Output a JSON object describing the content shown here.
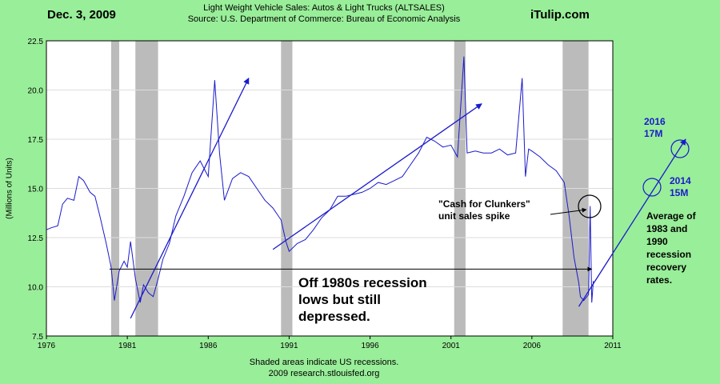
{
  "header": {
    "date": "Dec. 3, 2009",
    "title": "Light Weight Vehicle Sales: Autos & Light Trucks (ALTSALES)",
    "source": "Source: U.S. Department of Commerce: Bureau of Economic Analysis",
    "brand": "iTulip.com"
  },
  "footer": {
    "line1": "Shaded areas indicate US recessions.",
    "line2": "2009 research.stlouisfed.org"
  },
  "annotations": {
    "lows": "Off 1980s recession\nlows but still\ndepressed.",
    "clunkers": "\"Cash for Clunkers\"\nunit sales spike",
    "average": "Average of\n1983 and\n1990\nrecession\nrecovery\nrates.",
    "forecast_2016": "2016\n17M",
    "forecast_2014": "2014\n15M"
  },
  "colors": {
    "background": "#99ee99",
    "plot": "#ffffff",
    "line": "#1a1acc",
    "recession": "#bbbbbb",
    "grid": "#dddddd",
    "reference": "#000000"
  },
  "chart_data": {
    "type": "line",
    "ylabel": "(Millions of Units)",
    "xlim": [
      1976,
      2011
    ],
    "ylim": [
      7.5,
      22.5
    ],
    "x_ticks": [
      1976,
      1981,
      1986,
      1991,
      1996,
      2001,
      2006,
      2011
    ],
    "y_ticks": [
      "7.5",
      "10.0",
      "12.5",
      "15.0",
      "17.5",
      "20.0",
      "22.5"
    ],
    "grid": "horizontal",
    "recessions": [
      [
        1980.0,
        1980.5
      ],
      [
        1981.5,
        1982.9
      ],
      [
        1990.5,
        1991.2
      ],
      [
        2001.2,
        2001.9
      ],
      [
        2007.9,
        2009.5
      ]
    ],
    "series": [
      {
        "x": [
          1976.0,
          1976.3,
          1976.7,
          1977.0,
          1977.3,
          1977.7,
          1978.0,
          1978.3,
          1978.7,
          1979.0,
          1979.3,
          1979.7,
          1980.0,
          1980.2,
          1980.5,
          1980.8,
          1981.0,
          1981.2,
          1981.5,
          1981.8,
          1982.0,
          1982.3,
          1982.6,
          1982.9,
          1983.2,
          1983.6,
          1984.0,
          1984.5,
          1985.0,
          1985.5,
          1986.0,
          1986.4,
          1986.7,
          1987.0,
          1987.5,
          1988.0,
          1988.5,
          1989.0,
          1989.5,
          1990.0,
          1990.5,
          1990.8,
          1991.0,
          1991.5,
          1992.0,
          1992.5,
          1993.0,
          1993.5,
          1994.0,
          1994.5,
          1995.0,
          1995.5,
          1996.0,
          1996.5,
          1997.0,
          1997.5,
          1998.0,
          1998.5,
          1999.0,
          1999.5,
          2000.0,
          2000.5,
          2001.0,
          2001.4,
          2001.8,
          2002.0,
          2002.5,
          2003.0,
          2003.5,
          2004.0,
          2004.5,
          2005.0,
          2005.4,
          2005.6,
          2005.8,
          2006.0,
          2006.5,
          2007.0,
          2007.5,
          2008.0,
          2008.3,
          2008.6,
          2008.9,
          2009.0,
          2009.2,
          2009.4,
          2009.5,
          2009.6,
          2009.7,
          2009.8
        ],
        "y": [
          12.9,
          13.0,
          13.1,
          14.2,
          14.5,
          14.4,
          15.6,
          15.4,
          14.8,
          14.6,
          13.6,
          12.2,
          11.0,
          9.3,
          10.8,
          11.3,
          11.0,
          12.3,
          10.4,
          9.2,
          10.1,
          9.7,
          9.5,
          10.4,
          11.4,
          12.2,
          13.6,
          14.6,
          15.8,
          16.4,
          15.6,
          20.5,
          16.8,
          14.4,
          15.5,
          15.8,
          15.6,
          15.0,
          14.4,
          14.0,
          13.4,
          12.3,
          11.8,
          12.2,
          12.4,
          12.9,
          13.5,
          13.9,
          14.6,
          14.6,
          14.7,
          14.8,
          15.0,
          15.3,
          15.2,
          15.4,
          15.6,
          16.2,
          16.8,
          17.6,
          17.4,
          17.1,
          17.2,
          16.6,
          21.7,
          16.8,
          16.9,
          16.8,
          16.8,
          17.0,
          16.7,
          16.8,
          20.6,
          15.6,
          17.0,
          16.9,
          16.6,
          16.2,
          15.9,
          15.3,
          13.6,
          11.5,
          10.2,
          9.5,
          9.3,
          9.5,
          9.6,
          14.1,
          9.2,
          10.3
        ]
      }
    ],
    "reference_line": {
      "y": 10.9,
      "x_range": [
        1979.9,
        2009.7
      ]
    },
    "trend_lines": [
      {
        "x": [
          1981.2,
          1988.5
        ],
        "y": [
          8.4,
          20.6
        ]
      },
      {
        "x": [
          1990.0,
          2002.9
        ],
        "y": [
          11.9,
          19.3
        ]
      },
      {
        "x": [
          2008.9,
          2015.5
        ],
        "y": [
          9.0,
          17.5
        ]
      }
    ]
  }
}
